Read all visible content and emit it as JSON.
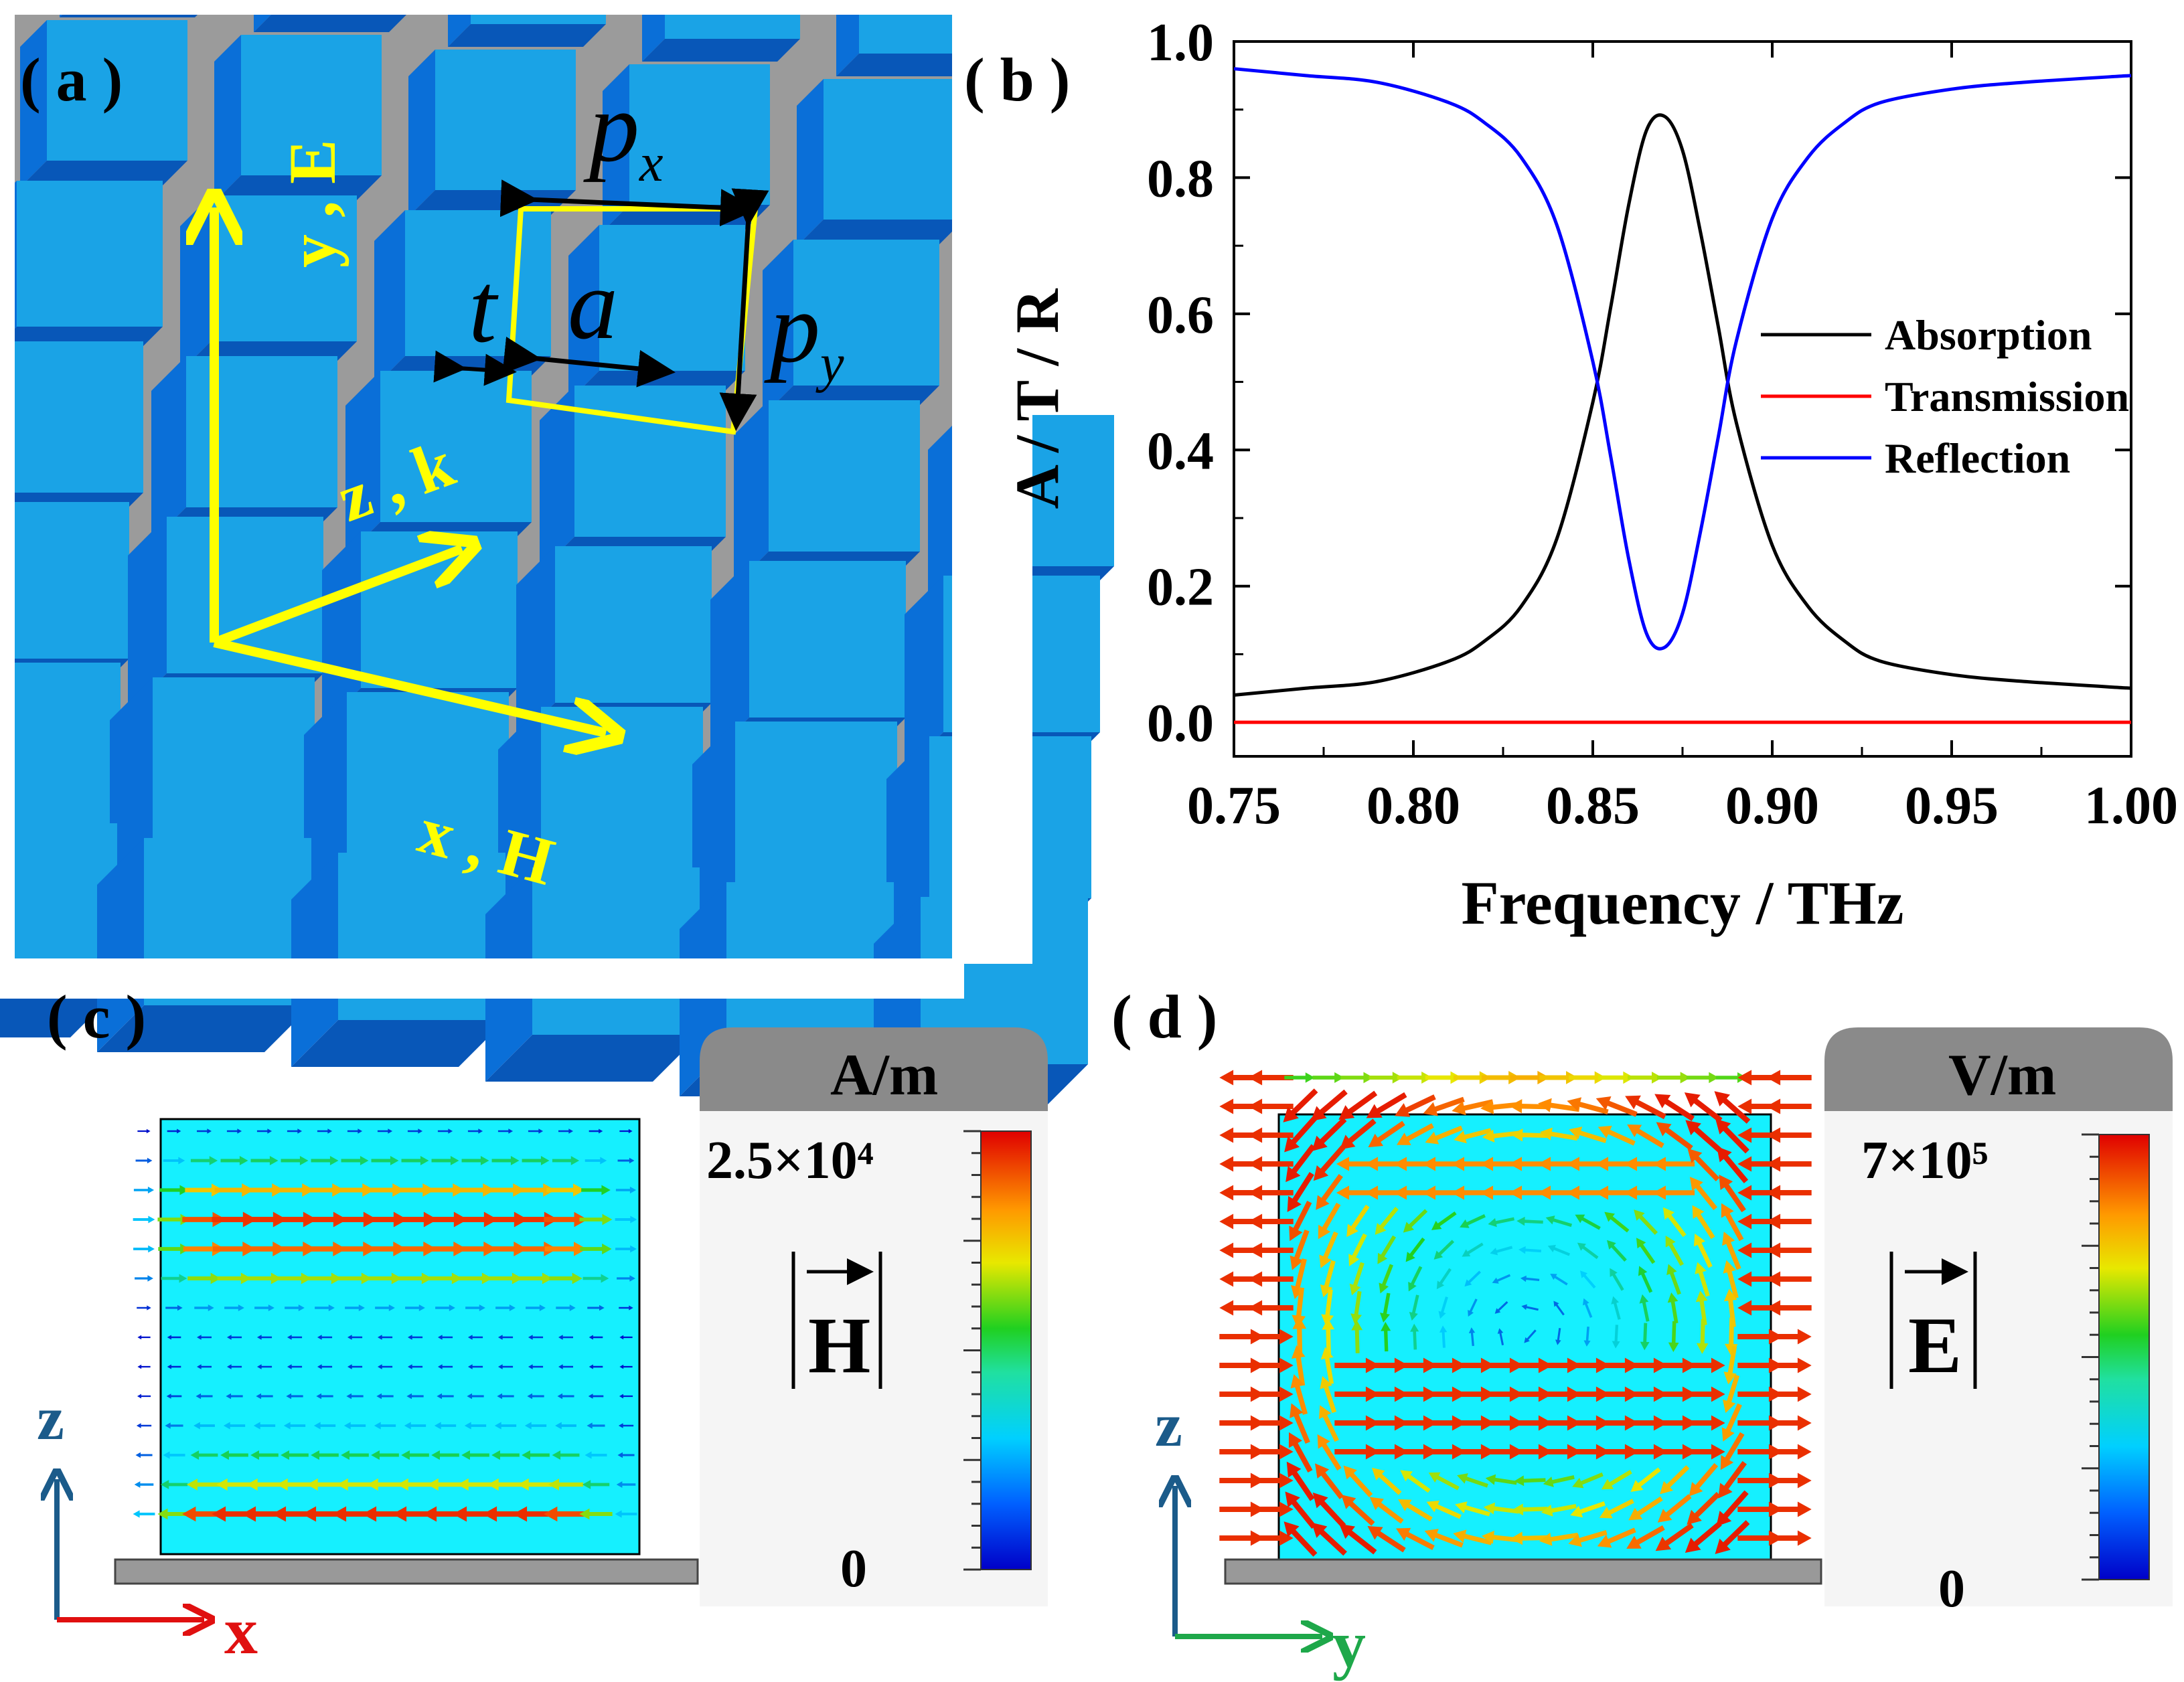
{
  "panel_a": {
    "label": "( a )",
    "px_main": "p",
    "px_sub": "x",
    "py_main": "p",
    "py_sub": "y",
    "t": "t",
    "a": "a",
    "axis_y": "y , E",
    "axis_z": "z , k",
    "axis_x": "x , H",
    "colors": {
      "grid": "#9b9b9b",
      "cube_top": "#1aa3e6",
      "cube_side": "#0a6fd8",
      "axes": "#ffff00",
      "arrow": "#000000"
    }
  },
  "panel_c": {
    "label": "( c )",
    "unit": "A/m",
    "max": "2.5×10⁴",
    "min": "0",
    "field_symbol": "H",
    "axis_z": "z",
    "axis_x": "x"
  },
  "panel_d": {
    "label": "( d )",
    "unit": "V/m",
    "max": "7×10⁵",
    "min": "0",
    "field_symbol": "E",
    "axis_z": "z",
    "axis_y": "y"
  },
  "chart_data": {
    "type": "line",
    "panel_label": "( b )",
    "title": "",
    "xlabel": "Frequency / THz",
    "ylabel": "A / T / R",
    "xlim": [
      0.75,
      1.0
    ],
    "ylim": [
      -0.05,
      1.0
    ],
    "xticks": [
      "0.75",
      "0.80",
      "0.85",
      "0.90",
      "0.95",
      "1.00"
    ],
    "yticks": [
      "0.0",
      "0.2",
      "0.4",
      "0.6",
      "0.8",
      "1.0"
    ],
    "legend_position": "right",
    "series": [
      {
        "name": "Absorption",
        "color": "#000000",
        "x": [
          0.75,
          0.77,
          0.79,
          0.81,
          0.82,
          0.83,
          0.84,
          0.85,
          0.855,
          0.86,
          0.865,
          0.87,
          0.875,
          0.88,
          0.885,
          0.89,
          0.9,
          0.91,
          0.92,
          0.93,
          0.95,
          0.97,
          1.0
        ],
        "y": [
          0.04,
          0.05,
          0.06,
          0.09,
          0.12,
          0.17,
          0.27,
          0.47,
          0.61,
          0.76,
          0.87,
          0.89,
          0.84,
          0.72,
          0.58,
          0.44,
          0.26,
          0.17,
          0.12,
          0.09,
          0.07,
          0.06,
          0.05
        ]
      },
      {
        "name": "Transmission",
        "color": "#ff0000",
        "x": [
          0.75,
          1.0
        ],
        "y": [
          0.0,
          0.0
        ]
      },
      {
        "name": "Reflection",
        "color": "#0000ff",
        "x": [
          0.75,
          0.77,
          0.79,
          0.81,
          0.82,
          0.83,
          0.84,
          0.85,
          0.855,
          0.86,
          0.865,
          0.87,
          0.875,
          0.88,
          0.885,
          0.89,
          0.9,
          0.91,
          0.92,
          0.93,
          0.95,
          0.97,
          1.0
        ],
        "y": [
          0.96,
          0.95,
          0.94,
          0.91,
          0.88,
          0.83,
          0.73,
          0.53,
          0.39,
          0.24,
          0.13,
          0.11,
          0.16,
          0.28,
          0.42,
          0.56,
          0.74,
          0.83,
          0.88,
          0.91,
          0.93,
          0.94,
          0.95
        ]
      }
    ]
  }
}
